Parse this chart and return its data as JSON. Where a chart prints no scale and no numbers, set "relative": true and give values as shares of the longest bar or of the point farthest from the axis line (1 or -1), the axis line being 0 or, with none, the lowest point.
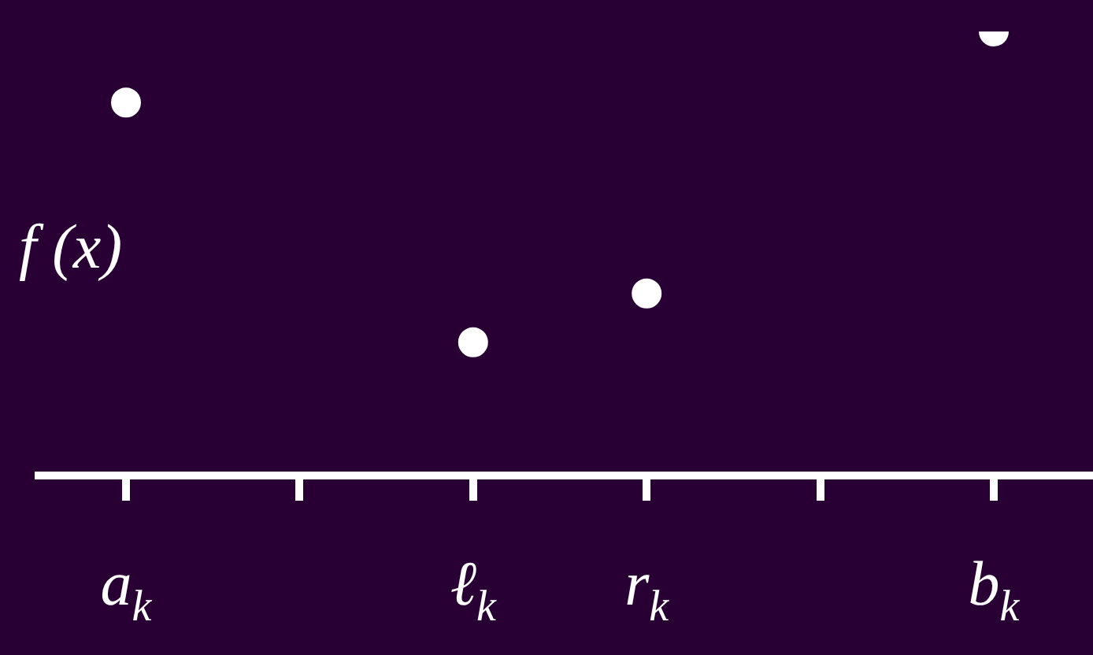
{
  "chart_data": {
    "type": "scatter",
    "relative": true,
    "ylabel": "f (x)",
    "categories": [
      "a$_{k}$",
      null,
      "ℓ$_{k}$",
      "r$_{k}$",
      null,
      "b$_{k}$"
    ],
    "series": [
      {
        "color": "#ffffff",
        "values": [
          0.84,
          null,
          0.3,
          0.41,
          null,
          1
        ]
      }
    ],
    "marker": "circle",
    "grid": false,
    "legend": false
  }
}
